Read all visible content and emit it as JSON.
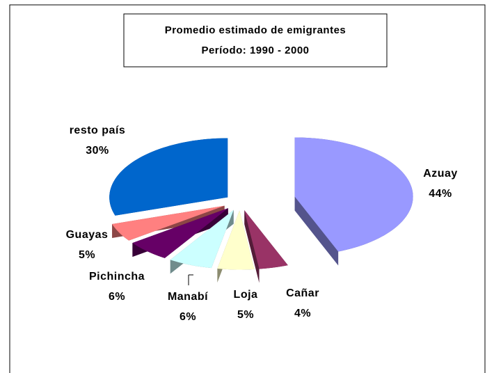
{
  "chart_data": {
    "type": "pie",
    "title": "Promedio estimado de emigrantes",
    "subtitle": "Período: 1990 - 2000",
    "categories": [
      "Azuay",
      "Cañar",
      "Loja",
      "Manabí",
      "Pichincha",
      "Guayas",
      "resto país"
    ],
    "values": [
      44,
      4,
      5,
      6,
      6,
      5,
      30
    ],
    "value_labels": [
      "44%",
      "4%",
      "5%",
      "6%",
      "6%",
      "5%",
      "30%"
    ],
    "colors": [
      "#9999ff",
      "#993366",
      "#ffffcc",
      "#ccffff",
      "#660066",
      "#ff8080",
      "#0066cc"
    ]
  }
}
